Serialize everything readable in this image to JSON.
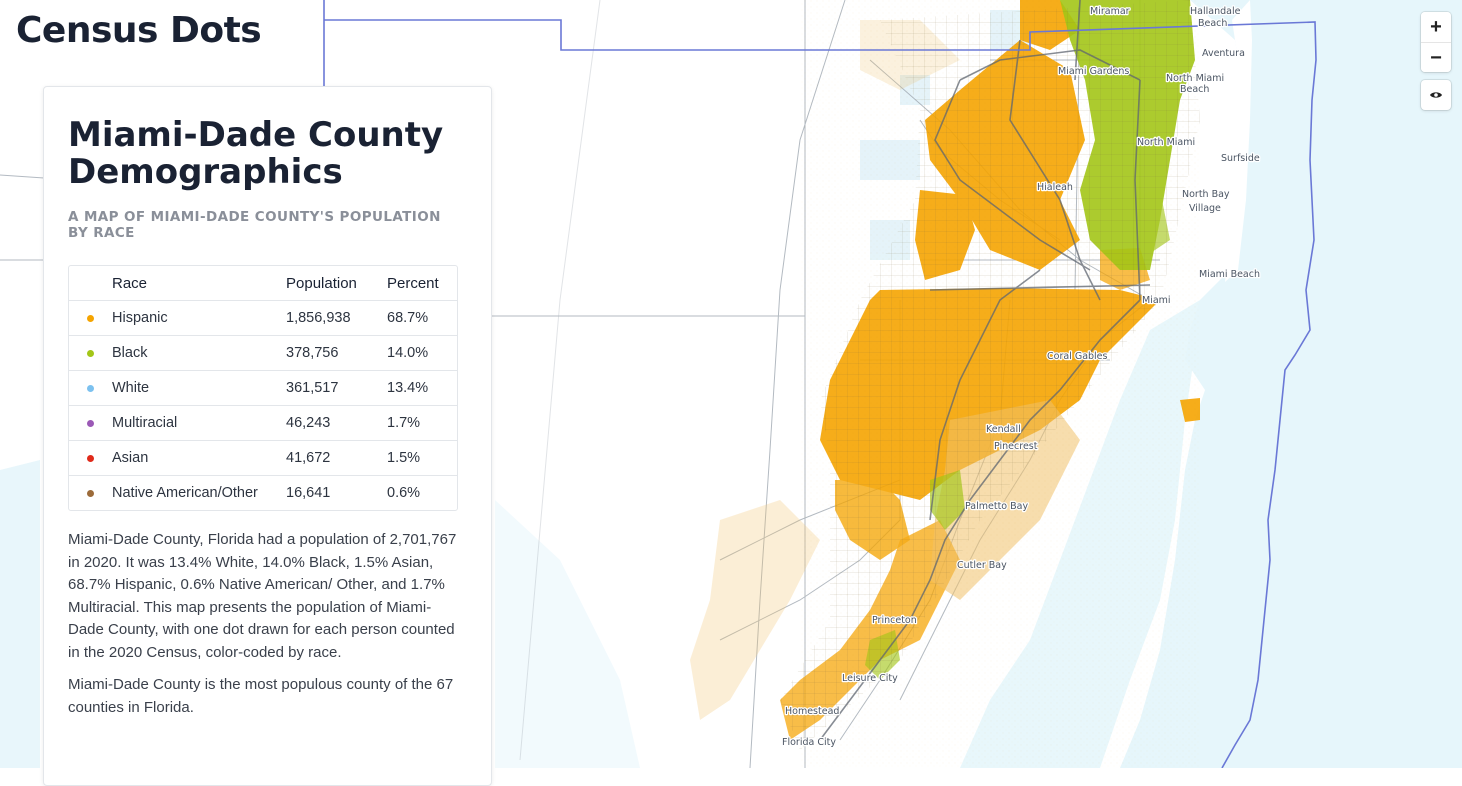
{
  "site": {
    "title": "Census Dots"
  },
  "panel": {
    "title": "Miami-Dade County Demographics",
    "subtitle": "A MAP OF MIAMI-DADE COUNTY'S POPULATION BY RACE",
    "table": {
      "headers": [
        "Race",
        "Population",
        "Percent"
      ],
      "rows": [
        {
          "race": "Hispanic",
          "population": "1,856,938",
          "percent": "68.7%",
          "color": "#f5a400"
        },
        {
          "race": "Black",
          "population": "378,756",
          "percent": "14.0%",
          "color": "#a3c617"
        },
        {
          "race": "White",
          "population": "361,517",
          "percent": "13.4%",
          "color": "#7cc1ef"
        },
        {
          "race": "Multiracial",
          "population": "46,243",
          "percent": "1.7%",
          "color": "#9b59b6"
        },
        {
          "race": "Asian",
          "population": "41,672",
          "percent": "1.5%",
          "color": "#e02a1a"
        },
        {
          "race": "Native American/Other",
          "population": "16,641",
          "percent": "0.6%",
          "color": "#9c6b3a"
        }
      ]
    },
    "description": "Miami-Dade County, Florida had a population of 2,701,767 in 2020. It was 13.4% White, 14.0% Black, 1.5% Asian, 68.7% Hispanic, 0.6% Native American/ Other, and 1.7% Multiracial. This map presents the population of Miami-Dade County, with one dot drawn for each person counted in the 2020 Census, color-coded by race.",
    "description2": "Miami-Dade County is the most populous county of the 67 counties in Florida."
  },
  "map": {
    "water_color": "#e6f6fb",
    "boundary_color": "#6a78d6",
    "places": [
      "Miramar",
      "Hallandale Beach",
      "Aventura",
      "Miami Gardens",
      "North Miami Beach",
      "North Miami",
      "Surfside",
      "Hialeah",
      "North Bay Village",
      "Miami Beach",
      "Miami",
      "Coral Gables",
      "Kendall",
      "Pinecrest",
      "Palmetto Bay",
      "Cutler Bay",
      "Princeton",
      "Leisure City",
      "Homestead",
      "Florida City"
    ]
  },
  "controls": {
    "zoom_in": "+",
    "zoom_out": "−"
  }
}
